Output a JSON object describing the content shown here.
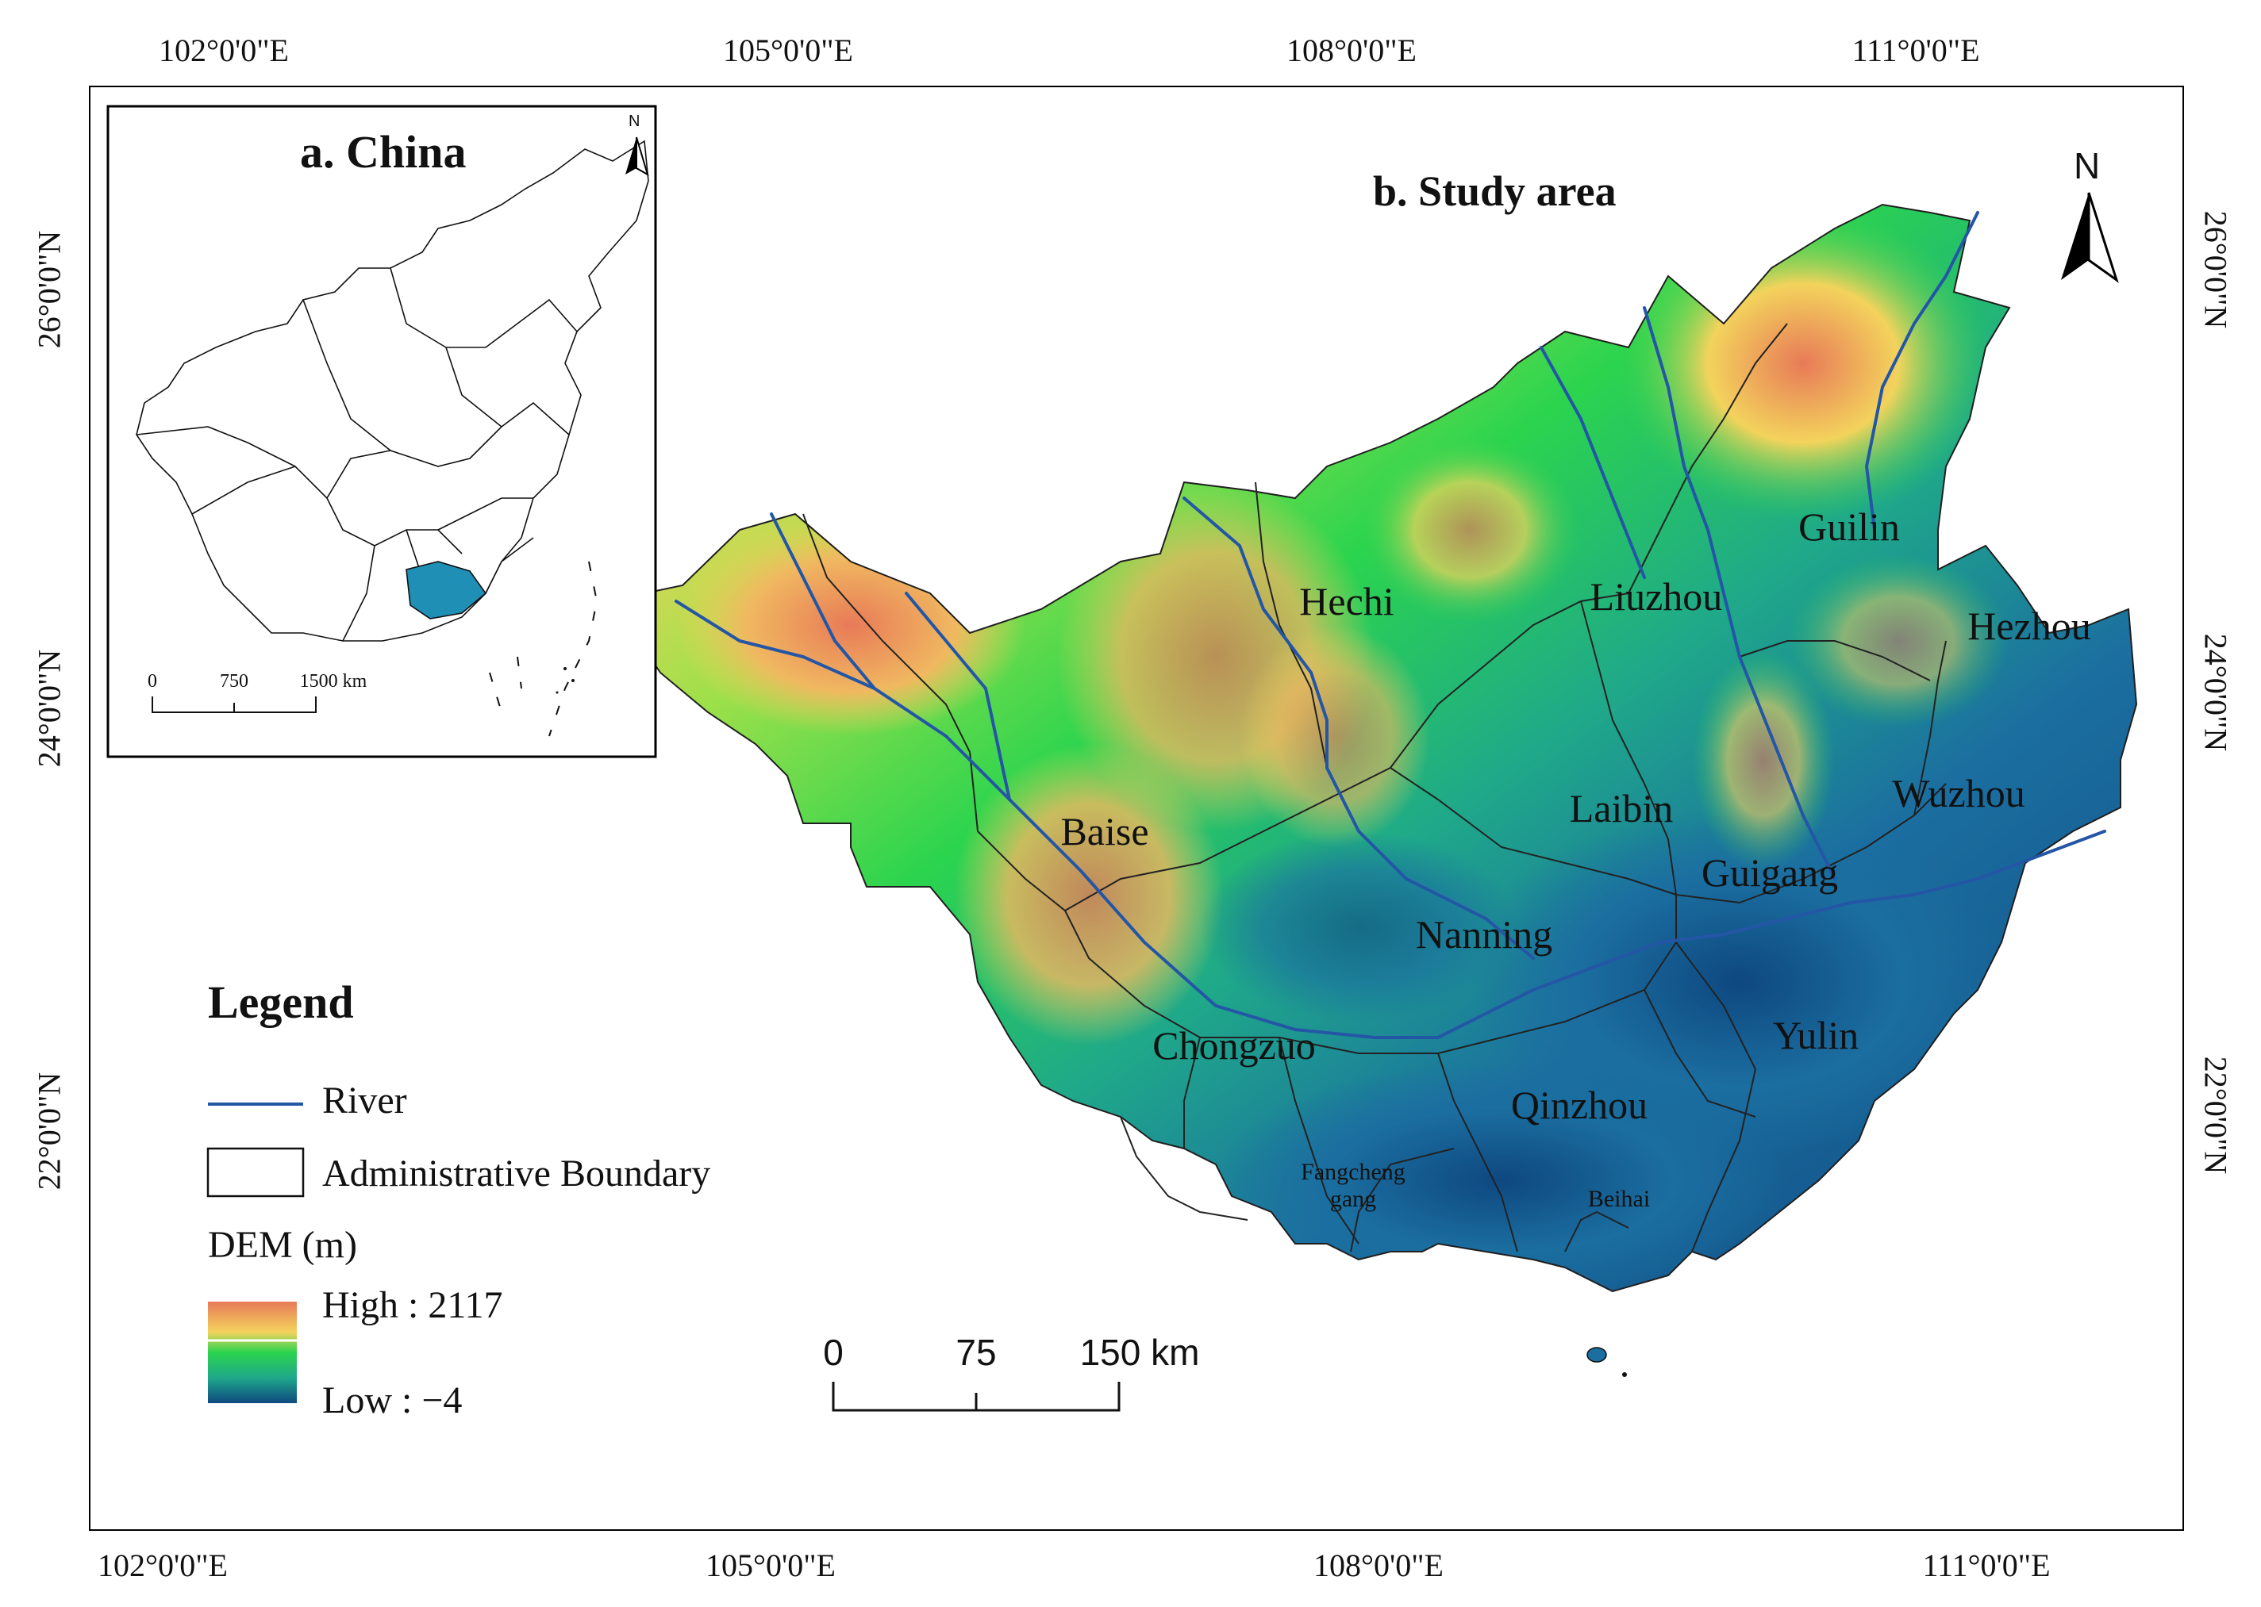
{
  "coords": {
    "top": [
      "102°0'0\"E",
      "105°0'0\"E",
      "108°0'0\"E",
      "111°0'0\"E"
    ],
    "bottom": [
      "102°0'0\"E",
      "105°0'0\"E",
      "108°0'0\"E",
      "111°0'0\"E"
    ],
    "left": [
      "26°0'0\"N",
      "24°0'0\"N",
      "22°0'0\"N"
    ],
    "right": [
      "26°0'0\"N",
      "24°0'0\"N",
      "22°0'0\"N"
    ]
  },
  "inset": {
    "title": "a. China",
    "north": "N",
    "scale": [
      "0",
      "750",
      "1500 km"
    ]
  },
  "main": {
    "title": "b. Study area",
    "north": "N",
    "cities": [
      "Hechi",
      "Liuzhou",
      "Guilin",
      "Hezhou",
      "Baise",
      "Laibin",
      "Wuzhou",
      "Guigang",
      "Nanning",
      "Chongzuo",
      "Yulin",
      "Qinzhou",
      "Fangcheng",
      "gang",
      "Beihai"
    ],
    "scale": [
      "0",
      "75",
      "150 km"
    ]
  },
  "legend": {
    "title": "Legend",
    "river": "River",
    "boundary": "Administrative Boundary",
    "dem_title": "DEM (m)",
    "high": "High : 2117",
    "low": "Low : −4"
  },
  "colors": {
    "river": "#2456a6",
    "dem_high": "#e87a58",
    "dem_mid_high": "#f3d35c",
    "dem_mid": "#2bd44e",
    "dem_low": "#1b6ea0",
    "dem_lowest": "#0e4880",
    "highlight_province": "#1f8fb5"
  }
}
